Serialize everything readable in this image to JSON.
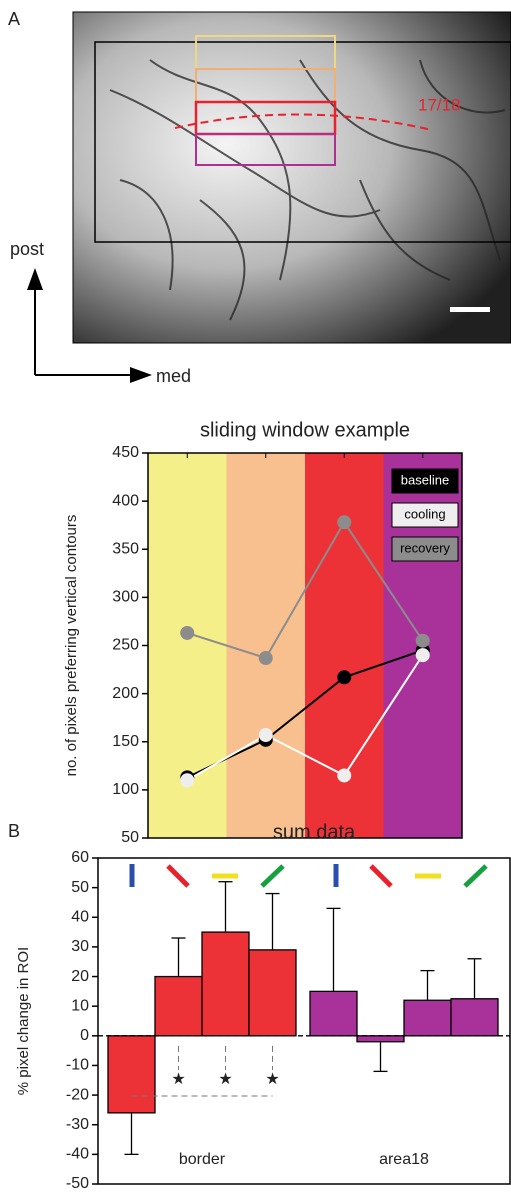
{
  "panel_a": {
    "label": "A",
    "boundary_label": "17/18",
    "axis_labels": [
      "post",
      "med"
    ]
  },
  "panel_b": {
    "label": "B"
  },
  "chart_data": [
    {
      "type": "line",
      "title": "sliding window example",
      "ylabel": "no. of pixels preferring vertical contours",
      "categories": [
        null,
        null,
        null,
        null
      ],
      "band_colors": [
        "#f5ef8a",
        "#f8c08f",
        "#ec3237",
        "#a8329a"
      ],
      "series": [
        {
          "name": "baseline",
          "color": "#000000",
          "values": [
            113,
            152,
            217,
            245
          ]
        },
        {
          "name": "cooling",
          "color": "#eeeeee",
          "values": [
            110,
            157,
            115,
            240
          ]
        },
        {
          "name": "recovery",
          "color": "#8c8c8c",
          "values": [
            263,
            237,
            378,
            255
          ]
        }
      ],
      "ylim": [
        50,
        450
      ],
      "yticks": [
        50,
        100,
        150,
        200,
        250,
        300,
        350,
        400,
        450
      ],
      "legend": "upper right"
    },
    {
      "type": "bar",
      "title": "sum data",
      "ylabel": "% pixel change in ROI",
      "groups": [
        {
          "label": "border",
          "color": "#ec3237",
          "values": [
            -26,
            20,
            35,
            29
          ],
          "errors": [
            14,
            13,
            17,
            19
          ]
        },
        {
          "label": "area18",
          "color": "#a8329a",
          "values": [
            15,
            -2,
            12,
            12.5
          ],
          "errors": [
            28,
            10,
            10,
            13.5
          ]
        }
      ],
      "annotations": [
        "★",
        "★",
        "★"
      ],
      "ylim": [
        -50,
        60
      ],
      "yticks": [
        -50,
        -40,
        -30,
        -20,
        -10,
        0,
        10,
        20,
        30,
        40,
        50,
        60
      ]
    }
  ]
}
